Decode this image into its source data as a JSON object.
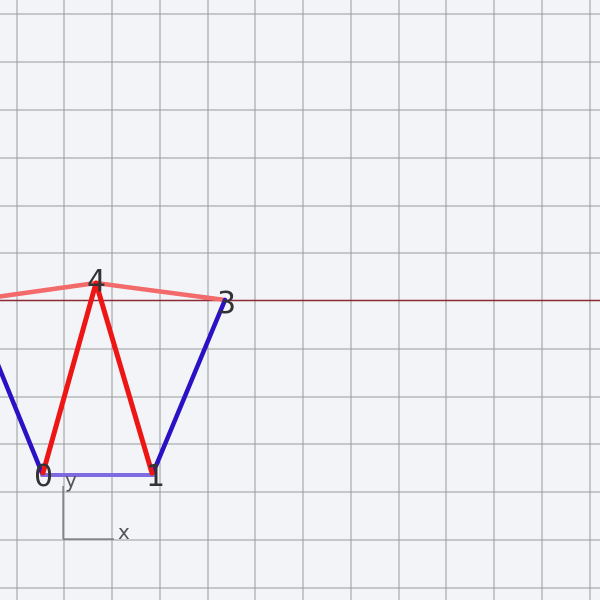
{
  "vertices": [
    {
      "id": "v0",
      "label": "0"
    },
    {
      "id": "v1",
      "label": "1"
    },
    {
      "id": "v3",
      "label": "3"
    },
    {
      "id": "v4",
      "label": "4"
    }
  ],
  "axes": {
    "x_label": "x",
    "y_label": "y"
  },
  "colors": {
    "background": "#f3f4f8",
    "grid": "#9a9a9a",
    "horizon_line": "#8b2b34",
    "edge_blue": "#2a12c4",
    "edge_red": "#ee1515",
    "edge_red_faded": "#f26a6a",
    "edge_base": "#7f6be0",
    "axis_gizmo": "#777777"
  }
}
